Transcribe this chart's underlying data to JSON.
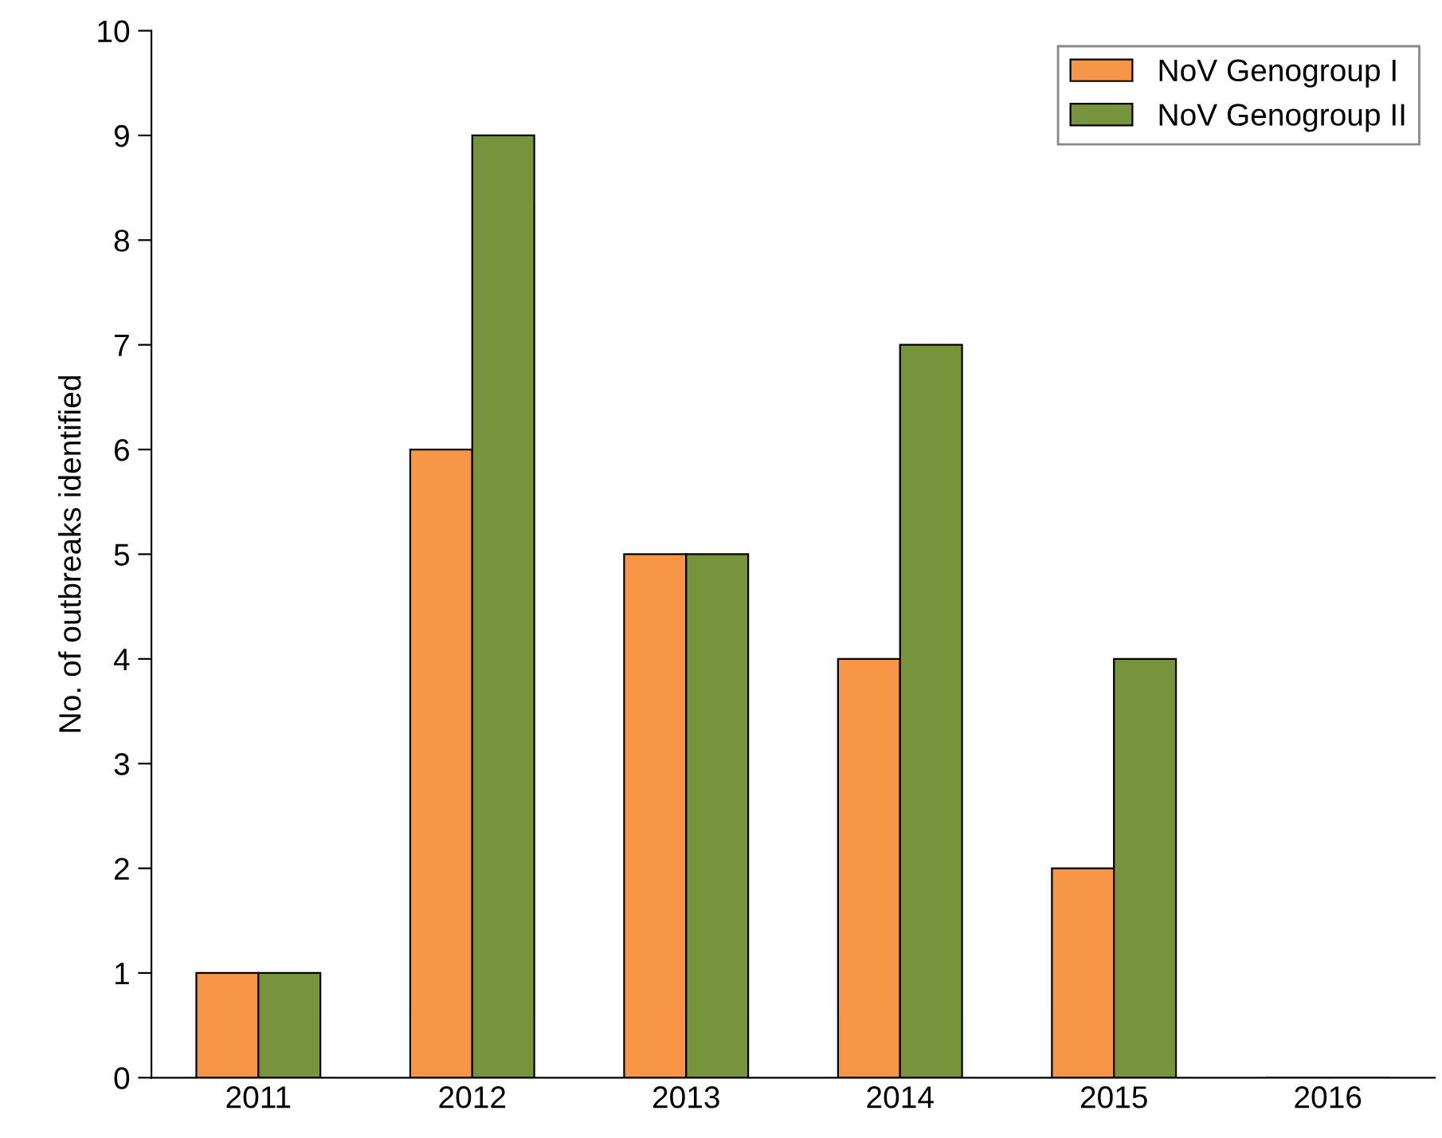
{
  "chart_data": {
    "type": "bar",
    "ylabel": "No. of outbreaks identified",
    "categories": [
      "2011",
      "2012",
      "2013",
      "2014",
      "2015",
      "2016"
    ],
    "series": [
      {
        "name": "NoV Genogroup I",
        "color": "#f79646",
        "values": [
          1,
          6,
          5,
          4,
          2,
          0
        ]
      },
      {
        "name": "NoV Genogroup II",
        "color": "#77933c",
        "values": [
          1,
          9,
          5,
          7,
          4,
          0
        ]
      }
    ],
    "ylim": [
      0,
      10
    ],
    "yticks": [
      0,
      1,
      2,
      3,
      4,
      5,
      6,
      7,
      8,
      9,
      10
    ],
    "grid": false,
    "legend": "top right"
  }
}
